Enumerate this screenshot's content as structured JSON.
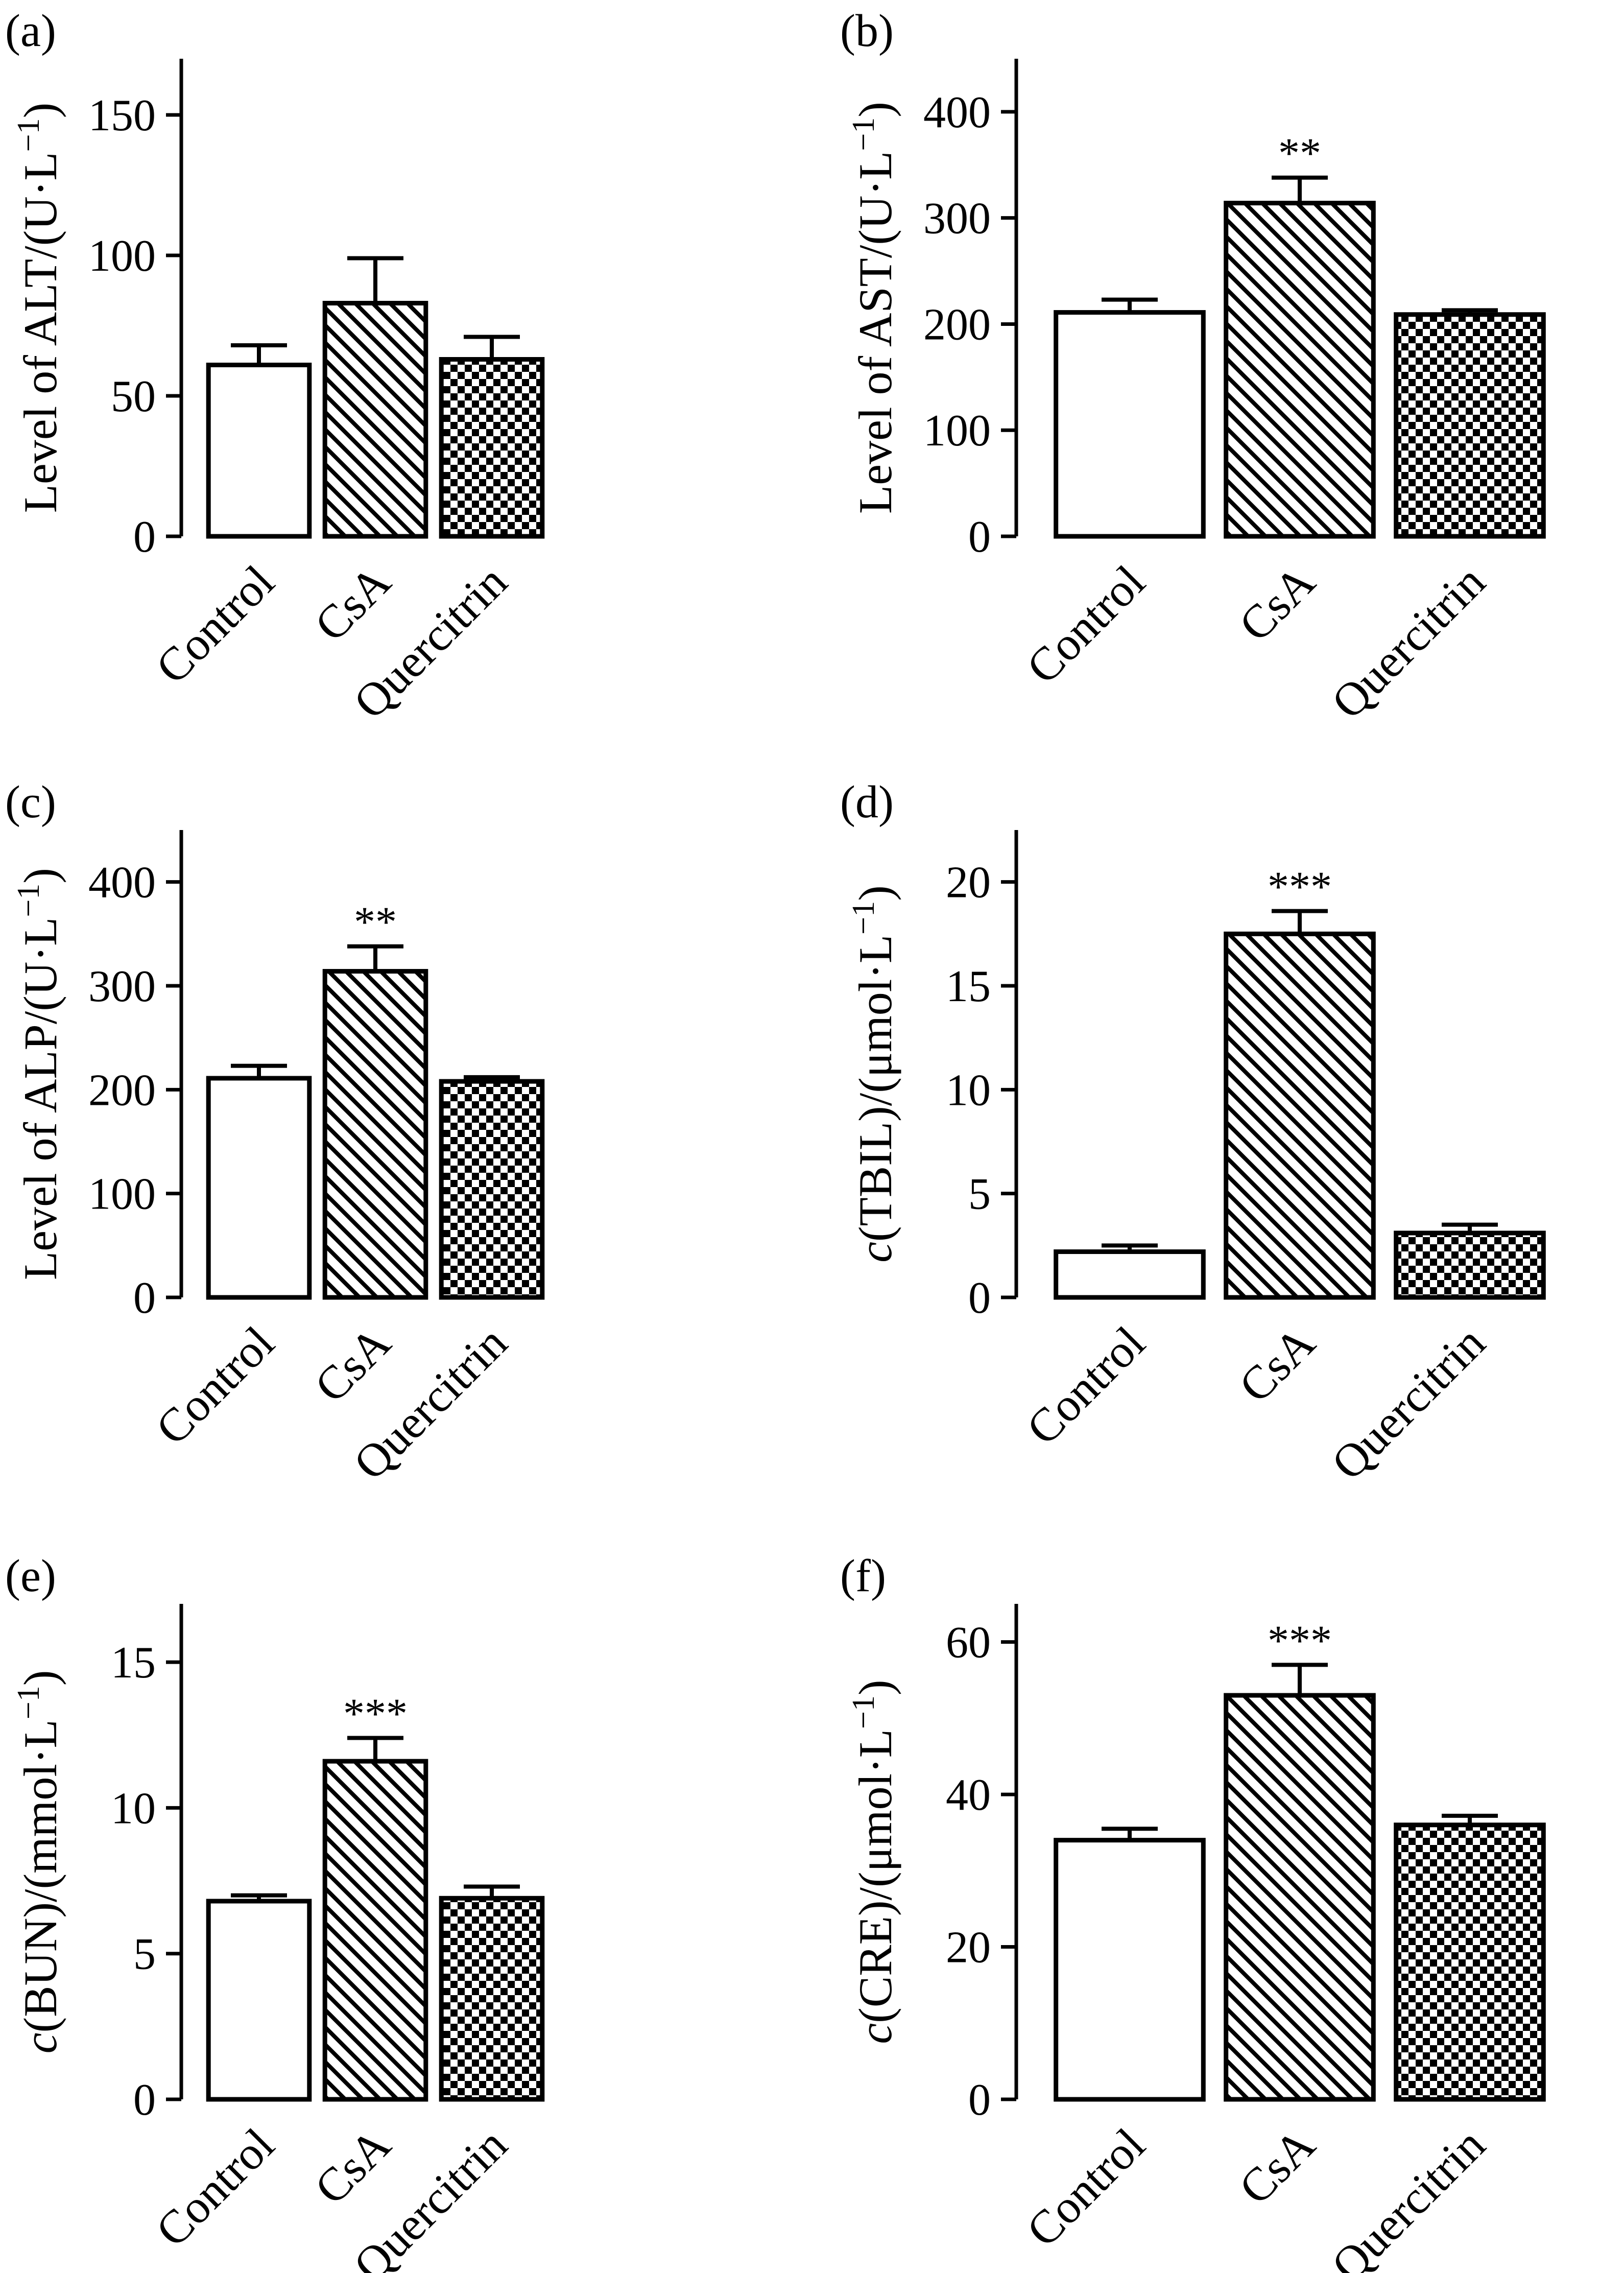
{
  "page": {
    "background": "#ffffff",
    "ink": "#000000"
  },
  "chart_data": [
    {
      "type": "bar",
      "panel_label": "(a)",
      "categories": [
        "Control",
        "CsA",
        "Quercitrin"
      ],
      "values": [
        61,
        83,
        63
      ],
      "errors": [
        7,
        16,
        8
      ],
      "significance": [
        "",
        "",
        ""
      ],
      "ylabel": {
        "prefix": "Level of ALT/(U·L",
        "sup": "−1",
        "suffix": ")",
        "italic_prefix": ""
      },
      "ylim": [
        0,
        170
      ],
      "yticks": [
        0,
        50,
        100,
        150
      ],
      "patterns": [
        "none",
        "diagonal",
        "checker"
      ]
    },
    {
      "type": "bar",
      "panel_label": "(b)",
      "categories": [
        "Control",
        "CsA",
        "Quercitrin"
      ],
      "values": [
        211,
        314,
        209
      ],
      "errors": [
        12,
        24,
        4
      ],
      "significance": [
        "",
        "**",
        ""
      ],
      "ylabel": {
        "prefix": "Level of AST/(U·L",
        "sup": "−1",
        "suffix": ")",
        "italic_prefix": ""
      },
      "ylim": [
        0,
        450
      ],
      "yticks": [
        0,
        100,
        200,
        300,
        400
      ],
      "patterns": [
        "none",
        "diagonal",
        "checker"
      ]
    },
    {
      "type": "bar",
      "panel_label": "(c)",
      "categories": [
        "Control",
        "CsA",
        "Quercitrin"
      ],
      "values": [
        211,
        314,
        208
      ],
      "errors": [
        12,
        24,
        4
      ],
      "significance": [
        "",
        "**",
        ""
      ],
      "ylabel": {
        "prefix": "Level of ALP/(U·L",
        "sup": "−1",
        "suffix": ")",
        "italic_prefix": ""
      },
      "ylim": [
        0,
        450
      ],
      "yticks": [
        0,
        100,
        200,
        300,
        400
      ],
      "patterns": [
        "none",
        "diagonal",
        "checker"
      ]
    },
    {
      "type": "bar",
      "panel_label": "(d)",
      "categories": [
        "Control",
        "CsA",
        "Quercitrin"
      ],
      "values": [
        2.2,
        17.5,
        3.1
      ],
      "errors": [
        0.3,
        1.1,
        0.4
      ],
      "significance": [
        "",
        "***",
        ""
      ],
      "ylabel": {
        "italic_prefix": "c",
        "prefix": "(TBIL)/(μmol·L",
        "sup": "−1",
        "suffix": ")"
      },
      "ylim": [
        0,
        22.5
      ],
      "yticks": [
        0,
        5,
        10,
        15,
        20
      ],
      "patterns": [
        "none",
        "diagonal",
        "checker"
      ]
    },
    {
      "type": "bar",
      "panel_label": "(e)",
      "categories": [
        "Control",
        "CsA",
        "Quercitrin"
      ],
      "values": [
        6.8,
        11.6,
        6.9
      ],
      "errors": [
        0.2,
        0.8,
        0.4
      ],
      "significance": [
        "",
        "***",
        ""
      ],
      "ylabel": {
        "italic_prefix": "c",
        "prefix": "(BUN)/(mmol·L",
        "sup": "−1",
        "suffix": ")"
      },
      "ylim": [
        0,
        17
      ],
      "yticks": [
        0,
        5,
        10,
        15
      ],
      "patterns": [
        "none",
        "diagonal",
        "checker"
      ]
    },
    {
      "type": "bar",
      "panel_label": "(f)",
      "categories": [
        "Control",
        "CsA",
        "Quercitrin"
      ],
      "values": [
        34,
        53,
        36
      ],
      "errors": [
        1.5,
        4,
        1.2
      ],
      "significance": [
        "",
        "***",
        ""
      ],
      "ylabel": {
        "italic_prefix": "c",
        "prefix": "(CRE)/(μmol·L",
        "sup": "−1",
        "suffix": ")"
      },
      "ylim": [
        0,
        65
      ],
      "yticks": [
        0,
        20,
        40,
        60
      ],
      "patterns": [
        "none",
        "diagonal",
        "checker"
      ]
    }
  ]
}
